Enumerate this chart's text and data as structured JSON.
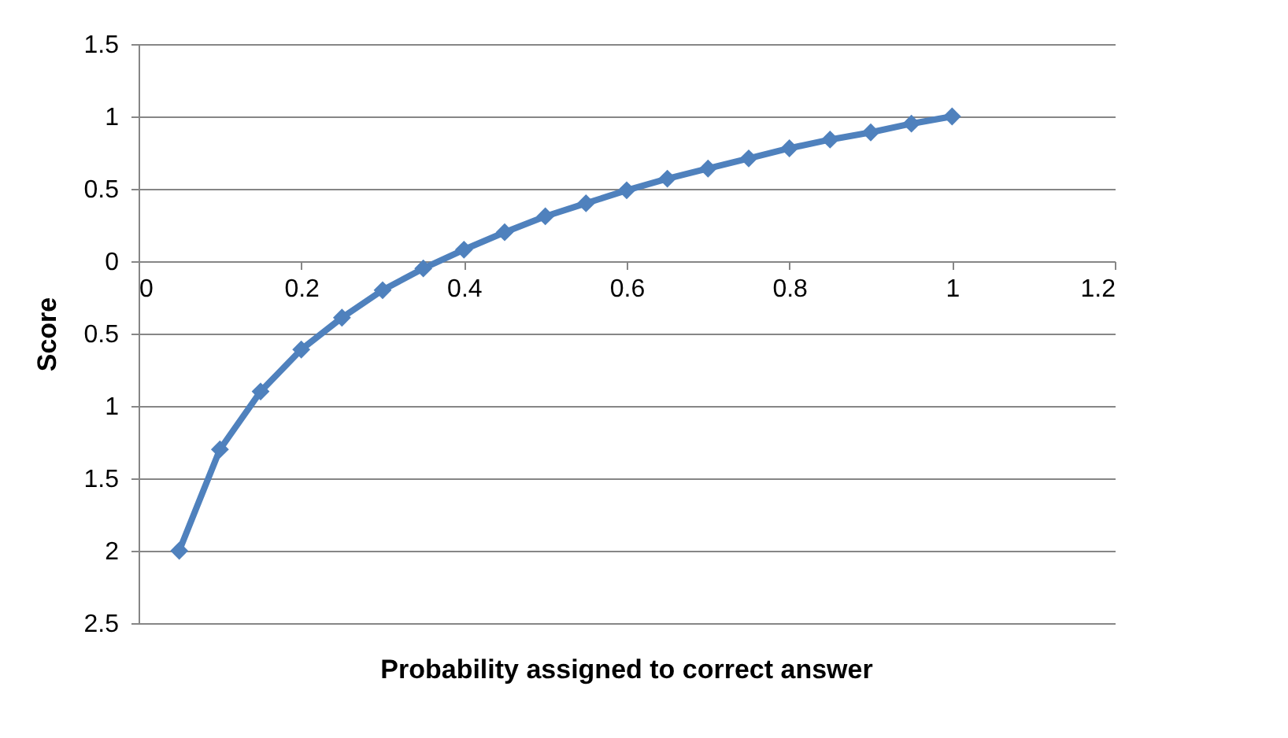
{
  "chart_data": {
    "type": "line",
    "xlabel": "Probability assigned to correct answer",
    "ylabel": "Score",
    "x": [
      0.05,
      0.1,
      0.15,
      0.2,
      0.25,
      0.3,
      0.35,
      0.4,
      0.45,
      0.5,
      0.55,
      0.6,
      0.65,
      0.7,
      0.75,
      0.8,
      0.85,
      0.9,
      0.95,
      1
    ],
    "series": [
      {
        "color": "#4f81bd",
        "values": [
          -2.0,
          -1.3,
          -0.9,
          -0.61,
          -0.39,
          -0.2,
          -0.05,
          0.08,
          0.2,
          0.31,
          0.4,
          0.49,
          0.57,
          0.64,
          0.71,
          0.78,
          0.84,
          0.89,
          0.95,
          1.0
        ]
      }
    ],
    "xlim": [
      0,
      1.2
    ],
    "xticks": [
      0,
      0.2,
      0.4,
      0.6,
      0.8,
      1,
      1.2
    ],
    "ylim": [
      -2.5,
      1.5
    ],
    "yticks": [
      1.5,
      1,
      0.5,
      0,
      {
        "value": -0.5,
        "label": "0.5"
      },
      {
        "value": -1,
        "label": "1"
      },
      {
        "value": -1.5,
        "label": "1.5"
      },
      {
        "value": -2,
        "label": "2"
      },
      {
        "value": -2.5,
        "label": "2.5"
      }
    ],
    "grid": "y",
    "marker": "diamond",
    "line_style": "solid"
  }
}
